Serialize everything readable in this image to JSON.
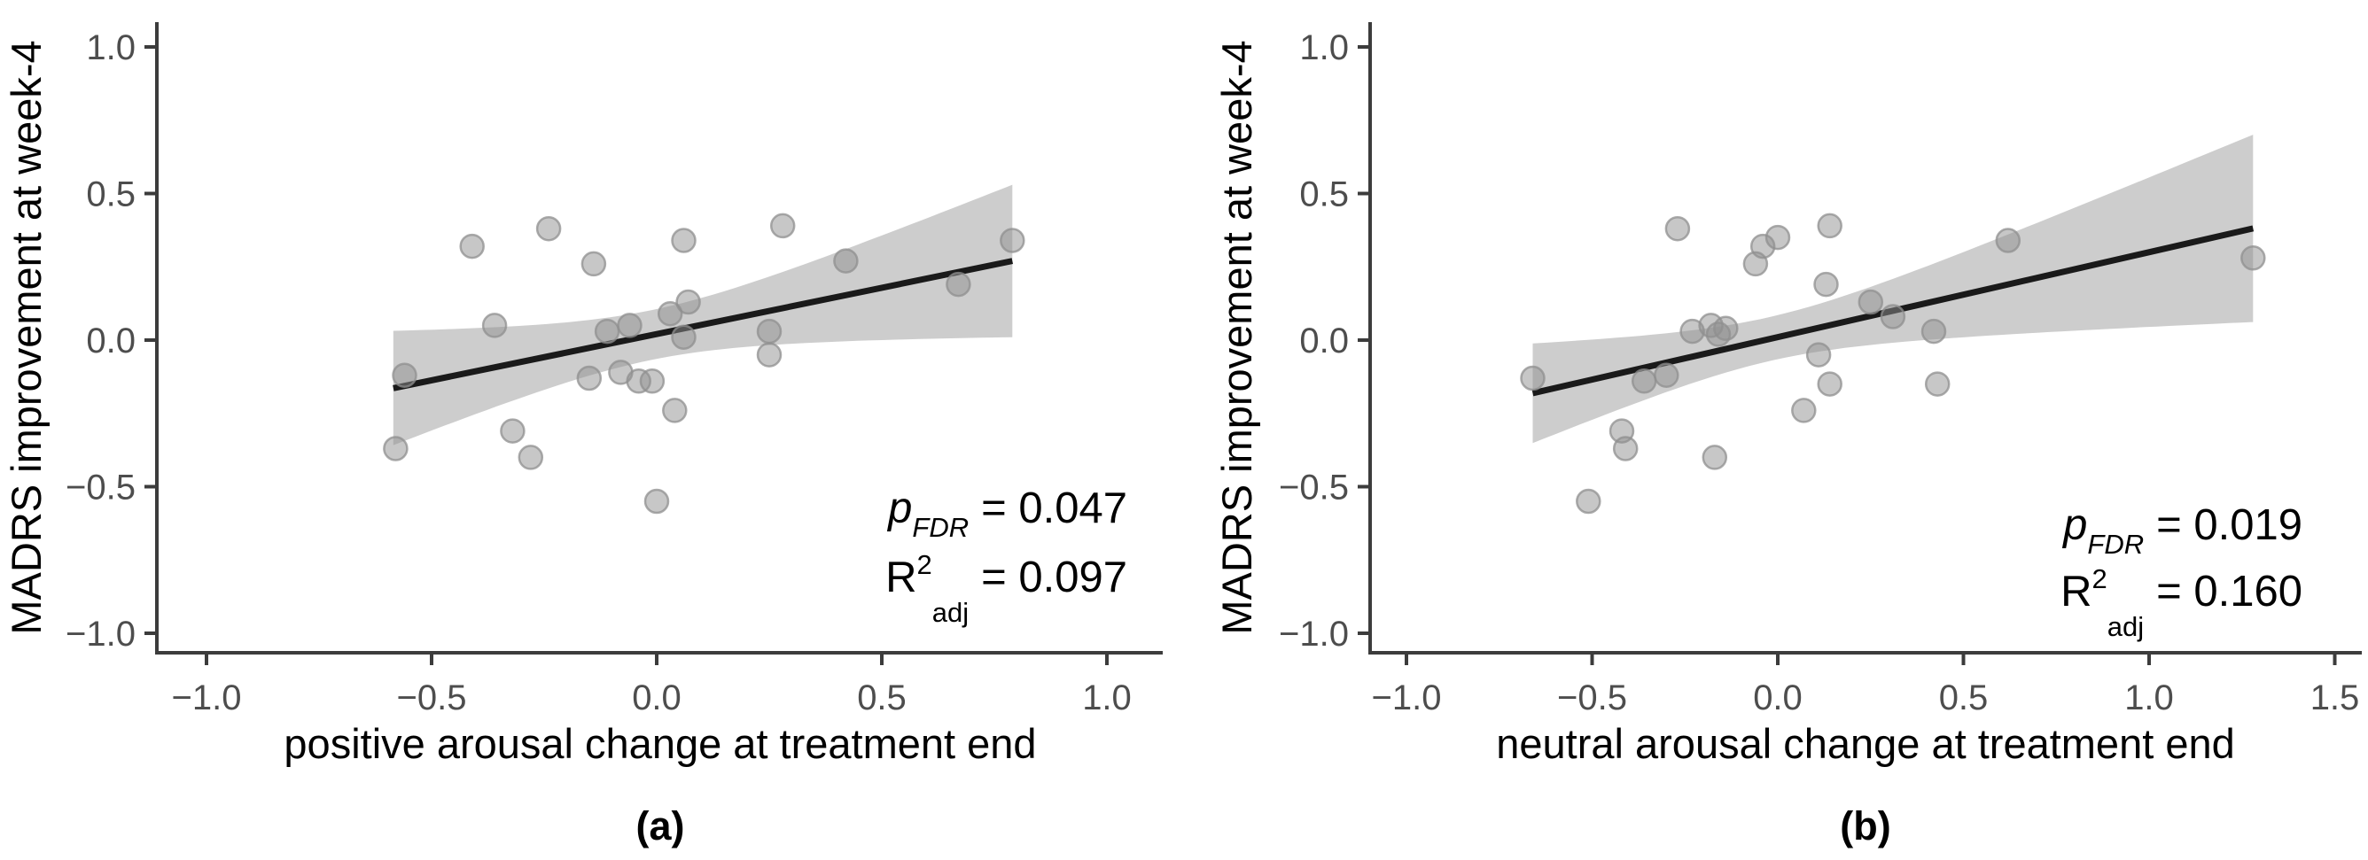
{
  "figure": {
    "background": "#ffffff",
    "colors": {
      "band": "#cdcdcd",
      "regression_line": "#1a1a1a",
      "point": "#8f8f8f",
      "axis": "#3c3c3c",
      "tick_label": "#4d4d4d",
      "text": "#000000"
    }
  },
  "chart_data": [
    {
      "type": "scatter",
      "title": "",
      "xlabel": "positive arousal change at treatment end",
      "ylabel": "MADRS improvement at week-4",
      "caption": "(a)",
      "xlim": [
        -1.11,
        1.12
      ],
      "ylim": [
        -1.07,
        1.08
      ],
      "grid": false,
      "legend": "none",
      "x_tick_values": [
        -1.0,
        -0.5,
        0.0,
        0.5,
        1.0
      ],
      "x_tick_labels": [
        "−1.0",
        "−0.5",
        "0.0",
        "0.5",
        "1.0"
      ],
      "y_tick_values": [
        1.0,
        0.5,
        0.0,
        -0.5,
        -1.0
      ],
      "y_tick_labels": [
        "1.0",
        "0.5",
        "0.0",
        "−0.5",
        "−1.0"
      ],
      "points": [
        [
          -0.41,
          0.32
        ],
        [
          -0.24,
          0.38
        ],
        [
          -0.14,
          0.26
        ],
        [
          0.06,
          0.34
        ],
        [
          0.28,
          0.39
        ],
        [
          0.42,
          0.27
        ],
        [
          0.67,
          0.19
        ],
        [
          0.79,
          0.34
        ],
        [
          -0.36,
          0.05
        ],
        [
          -0.11,
          0.03
        ],
        [
          -0.06,
          0.05
        ],
        [
          0.03,
          0.09
        ],
        [
          0.07,
          0.13
        ],
        [
          0.06,
          0.01
        ],
        [
          0.25,
          0.03
        ],
        [
          0.25,
          -0.05
        ],
        [
          -0.56,
          -0.12
        ],
        [
          -0.15,
          -0.13
        ],
        [
          -0.08,
          -0.11
        ],
        [
          -0.04,
          -0.14
        ],
        [
          -0.01,
          -0.14
        ],
        [
          0.04,
          -0.24
        ],
        [
          -0.32,
          -0.31
        ],
        [
          -0.28,
          -0.4
        ],
        [
          -0.58,
          -0.37
        ],
        [
          0.0,
          -0.55
        ]
      ],
      "regression_line": {
        "x_start": -0.585,
        "y_start": -0.164,
        "x_end": 0.79,
        "y_end": 0.27,
        "intercept": 0.021,
        "slope": 0.315
      },
      "ci_band": {
        "x_min": -0.585,
        "x_max": 0.79,
        "intercept": 0.021,
        "slope": 0.315,
        "h0": 0.085,
        "b": 0.0938,
        "xc": -0.012
      },
      "annotation": {
        "p_label": "p",
        "p_sub": "FDR",
        "p_eq": "= 0.047",
        "r_label": "R",
        "r_sup": "2",
        "r_sub": "adj",
        "r_eq": "= 0.097"
      }
    },
    {
      "type": "scatter",
      "title": "",
      "xlabel": "neutral arousal change at treatment end",
      "ylabel": "MADRS improvement at week-4",
      "caption": "(b)",
      "xlim": [
        -1.1,
        1.57
      ],
      "ylim": [
        -1.07,
        1.08
      ],
      "grid": false,
      "legend": "none",
      "x_tick_values": [
        -1.0,
        -0.5,
        0.0,
        0.5,
        1.0,
        1.5
      ],
      "x_tick_labels": [
        "−1.0",
        "−0.5",
        "0.0",
        "0.5",
        "1.0",
        "1.5"
      ],
      "y_tick_values": [
        1.0,
        0.5,
        0.0,
        -0.5,
        -1.0
      ],
      "y_tick_labels": [
        "1.0",
        "0.5",
        "0.0",
        "−0.5",
        "−1.0"
      ],
      "points": [
        [
          -0.27,
          0.38
        ],
        [
          -0.06,
          0.26
        ],
        [
          -0.04,
          0.32
        ],
        [
          0.0,
          0.35
        ],
        [
          0.14,
          0.39
        ],
        [
          0.13,
          0.19
        ],
        [
          0.25,
          0.13
        ],
        [
          0.31,
          0.08
        ],
        [
          0.62,
          0.34
        ],
        [
          1.28,
          0.28
        ],
        [
          -0.23,
          0.03
        ],
        [
          -0.18,
          0.05
        ],
        [
          -0.16,
          0.02
        ],
        [
          -0.14,
          0.04
        ],
        [
          0.11,
          -0.05
        ],
        [
          0.42,
          0.03
        ],
        [
          0.14,
          -0.15
        ],
        [
          0.07,
          -0.24
        ],
        [
          0.43,
          -0.15
        ],
        [
          -0.66,
          -0.13
        ],
        [
          -0.36,
          -0.14
        ],
        [
          -0.3,
          -0.12
        ],
        [
          -0.42,
          -0.31
        ],
        [
          -0.41,
          -0.37
        ],
        [
          -0.17,
          -0.4
        ],
        [
          -0.51,
          -0.55
        ]
      ],
      "regression_line": {
        "x_start": -0.66,
        "y_start": -0.181,
        "x_end": 1.28,
        "y_end": 0.381,
        "intercept": 0.01,
        "slope": 0.29
      },
      "ci_band": {
        "x_min": -0.66,
        "x_max": 1.28,
        "intercept": 0.01,
        "slope": 0.29,
        "h0": 0.075,
        "b": 0.057,
        "xc": -0.021
      },
      "annotation": {
        "p_label": "p",
        "p_sub": "FDR",
        "p_eq": "= 0.019",
        "r_label": "R",
        "r_sup": "2",
        "r_sub": "adj",
        "r_eq": "= 0.160"
      }
    }
  ]
}
